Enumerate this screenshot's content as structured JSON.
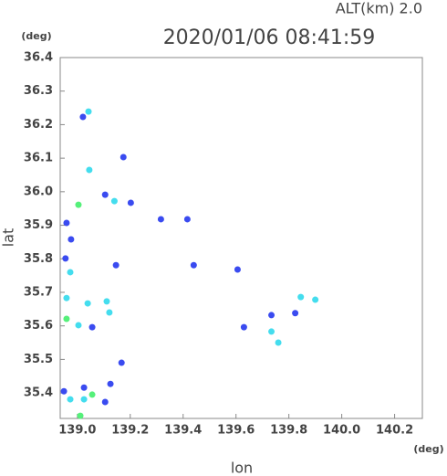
{
  "chart_data": {
    "type": "scatter",
    "title": "2020/01/06 08:41:59",
    "subtitle": "ALT(km) 2.0",
    "y_unit": "(deg)",
    "x_unit": "(deg)",
    "ylabel": "lat",
    "xlabel": "lon",
    "xlim": [
      138.935,
      140.305
    ],
    "ylim": [
      35.324,
      36.4
    ],
    "xticks": [
      {
        "value": 139,
        "label": "139.0"
      },
      139.2,
      139.4,
      139.6,
      139.8,
      {
        "value": 140,
        "label": "140.0"
      },
      140.2
    ],
    "yticks": [
      35.4,
      35.5,
      35.6,
      35.7,
      35.8,
      35.9,
      {
        "value": 36,
        "label": "36.0"
      },
      36.1,
      36.2,
      36.3,
      36.4
    ],
    "x": [
      139.042,
      139.021,
      139.045,
      139.004,
      139.105,
      139.14,
      139.202,
      138.959,
      138.976,
      138.955,
      138.973,
      138.959,
      139.039,
      139.111,
      139.121,
      138.959,
      139.004,
      139.056,
      139.167,
      139.025,
      139.125,
      138.949,
      138.973,
      139.025,
      139.056,
      139.105,
      139.011,
      139.845,
      139.9,
      139.734,
      139.824,
      139.63,
      139.734,
      139.76,
      139.416,
      139.606,
      139.44,
      139.316,
      139.146,
      139.174
    ],
    "values": [
      36.239,
      36.223,
      36.065,
      35.961,
      35.991,
      35.972,
      35.967,
      35.907,
      35.858,
      35.801,
      35.76,
      35.683,
      35.667,
      35.673,
      35.64,
      35.621,
      35.602,
      35.596,
      35.49,
      35.416,
      35.427,
      35.405,
      35.381,
      35.381,
      35.395,
      35.373,
      35.332,
      35.686,
      35.678,
      35.632,
      35.638,
      35.596,
      35.583,
      35.55,
      35.918,
      35.768,
      35.781,
      35.918,
      35.781,
      36.103
    ],
    "colors": [
      "#44ddee",
      "#3a4bf0",
      "#44ddee",
      "#55f07a",
      "#3a4bf0",
      "#44ddee",
      "#3a4bf0",
      "#3a4bf0",
      "#3a4bf0",
      "#3a4bf0",
      "#44ddee",
      "#44ddee",
      "#44ddee",
      "#44ddee",
      "#44ddee",
      "#55f07a",
      "#44ddee",
      "#3a4bf0",
      "#3a4bf0",
      "#3a4bf0",
      "#3a4bf0",
      "#3a4bf0",
      "#44ddee",
      "#44ddee",
      "#55f07a",
      "#3a4bf0",
      "#55f07a",
      "#44ddee",
      "#44ddee",
      "#3a4bf0",
      "#3a4bf0",
      "#3a4bf0",
      "#44ddee",
      "#44ddee",
      "#3a4bf0",
      "#3a4bf0",
      "#3a4bf0",
      "#3a4bf0",
      "#3a4bf0",
      "#3a4bf0"
    ]
  }
}
